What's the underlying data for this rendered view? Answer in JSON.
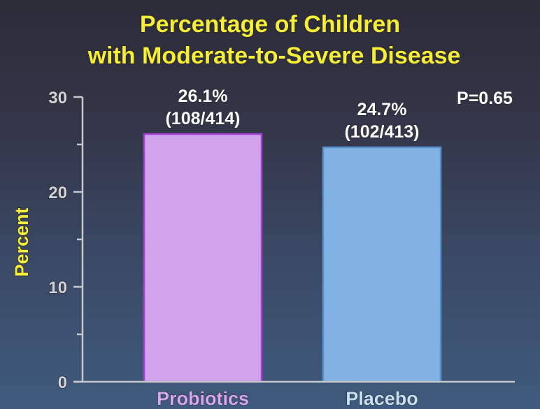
{
  "chart_data": {
    "type": "bar",
    "title": [
      "Percentage of Children",
      "with Moderate-to-Severe Disease"
    ],
    "xlabel": "",
    "ylabel": "Percent",
    "ylim": [
      0,
      30
    ],
    "yticks": [
      0,
      10,
      20,
      30
    ],
    "yminor_ticks": [
      5,
      15,
      25
    ],
    "grid": false,
    "categories": [
      "Probiotics",
      "Placebo"
    ],
    "values": [
      26.1,
      24.7
    ],
    "data_labels": [
      [
        "26.1%",
        "(108/414)"
      ],
      [
        "24.7%",
        "(102/413)"
      ]
    ],
    "colors": {
      "fill": [
        "#d0a4ec",
        "#80b2e4"
      ],
      "edge": [
        "#a43fd0",
        "#5a8fcc"
      ],
      "category_text": [
        "#d7a8ef",
        "#c4e2f0"
      ],
      "title": "#f6ec3a",
      "ylabel": "#f6ec3a"
    },
    "annotation": "P=0.65"
  }
}
